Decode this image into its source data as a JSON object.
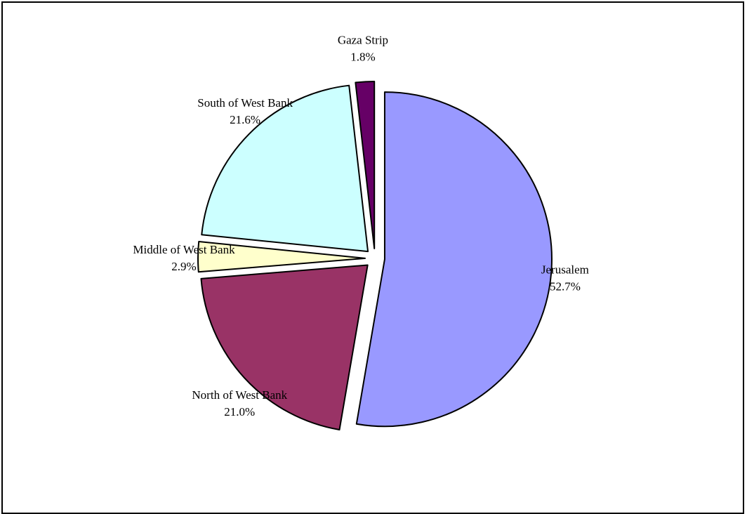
{
  "chart_data": {
    "type": "pie",
    "title": "",
    "categories": [
      "Jerusalem",
      "North of West Bank",
      "Middle of West Bank",
      "South of West Bank",
      "Gaza Strip"
    ],
    "values": [
      52.7,
      21.0,
      2.9,
      21.6,
      1.8
    ],
    "value_labels": [
      "52.7%",
      "21.0%",
      "2.9%",
      "21.6%",
      "1.8%"
    ],
    "colors": [
      "#9999ff",
      "#993366",
      "#ffffcc",
      "#ccffff",
      "#660066"
    ],
    "start_angle_deg": 0,
    "direction": "clockwise",
    "exploded": true,
    "legend": "none",
    "data_labels": "category-and-percent-outside"
  }
}
